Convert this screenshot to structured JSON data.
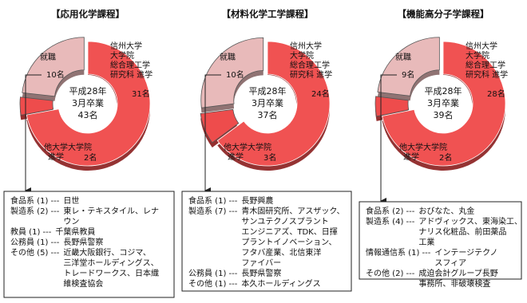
{
  "chart_data": [
    {
      "type": "pie",
      "title": "【応用化学課程】",
      "center_text": [
        "平成28年",
        "3月卒業",
        "43名"
      ],
      "categories": [
        [
          "信州大学",
          "大学院",
          "総合理工学",
          "研究科 進学"
        ],
        [
          "他大学大学院",
          "進学"
        ],
        [
          "就職"
        ]
      ],
      "values": [
        31,
        2,
        10
      ],
      "value_labels": [
        "31名",
        "2名",
        "10名"
      ],
      "colors": [
        "#f05252",
        "#ee4c4c",
        "#e8baba"
      ],
      "exploded": [
        false,
        true,
        true
      ],
      "employers": [
        {
          "category": "食品系 (1) ---",
          "names": [
            "日世"
          ]
        },
        {
          "category": "製造系 (2) ---",
          "names": [
            "東レ・テキスタイル、レナ",
            "ウン"
          ]
        },
        {
          "category": "教員 (1) ---",
          "names": [
            "千葉県教員"
          ]
        },
        {
          "category": "公務員 (1) ---",
          "names": [
            "長野県警察"
          ]
        },
        {
          "category": "その他 (5) ---",
          "names": [
            "近畿大阪銀行、コジマ、",
            "三洋堂ホールディングス、",
            "トレードワークス、日本織",
            "維検査協会"
          ]
        }
      ]
    },
    {
      "type": "pie",
      "title": "【材料化学工学課程】",
      "center_text": [
        "平成28年",
        "3月卒業",
        "37名"
      ],
      "categories": [
        [
          "信州大学",
          "大学院",
          "総合理工学",
          "研究科 進学"
        ],
        [
          "他大学大学院",
          "進学"
        ],
        [
          "就職"
        ]
      ],
      "values": [
        24,
        3,
        10
      ],
      "value_labels": [
        "24名",
        "3名",
        "10名"
      ],
      "colors": [
        "#f05252",
        "#ee4c4c",
        "#e8baba"
      ],
      "exploded": [
        false,
        true,
        true
      ],
      "employers": [
        {
          "category": "食品系 (1) ---",
          "names": [
            "長野興農"
          ]
        },
        {
          "category": "製造系 (7) ---",
          "names": [
            "青木固研究所、アスザック、",
            "サンユテクノスプラント",
            "エンジニアズ、TDK、日揮",
            "プラントイノベーション、",
            "フタバ産業、北信東洋",
            "ファイバー"
          ]
        },
        {
          "category": "公務員 (1) ---",
          "names": [
            "長野県警察"
          ]
        },
        {
          "category": "その他 (1) ---",
          "names": [
            "本久ホールディングス"
          ]
        }
      ]
    },
    {
      "type": "pie",
      "title": "【機能高分子学課程】",
      "center_text": [
        "平成28年",
        "3月卒業",
        "39名"
      ],
      "categories": [
        [
          "信州大学",
          "大学院",
          "総合理工学",
          "研究科 進学"
        ],
        [
          "他大学大学院",
          "進学"
        ],
        [
          "就職"
        ]
      ],
      "values": [
        28,
        2,
        9
      ],
      "value_labels": [
        "28名",
        "2名",
        "9名"
      ],
      "colors": [
        "#f05252",
        "#ee4c4c",
        "#e8baba"
      ],
      "exploded": [
        false,
        true,
        true
      ],
      "employers": [
        {
          "category": "食品系 (2) ---",
          "names": [
            "おびなた、丸金"
          ]
        },
        {
          "category": "製造系 (4) ---",
          "names": [
            "アドヴィックス、東海染工、",
            "ナリス化粧品、前田薬品",
            "工業"
          ]
        },
        {
          "category": "情報通信系 (1) ---",
          "names": [
            "インテージテクノ",
            "スフィア"
          ]
        },
        {
          "category": "その他 (2) ---",
          "names": [
            "成迫会計グループ長野",
            "事務所、非破壊検査"
          ]
        }
      ]
    }
  ]
}
